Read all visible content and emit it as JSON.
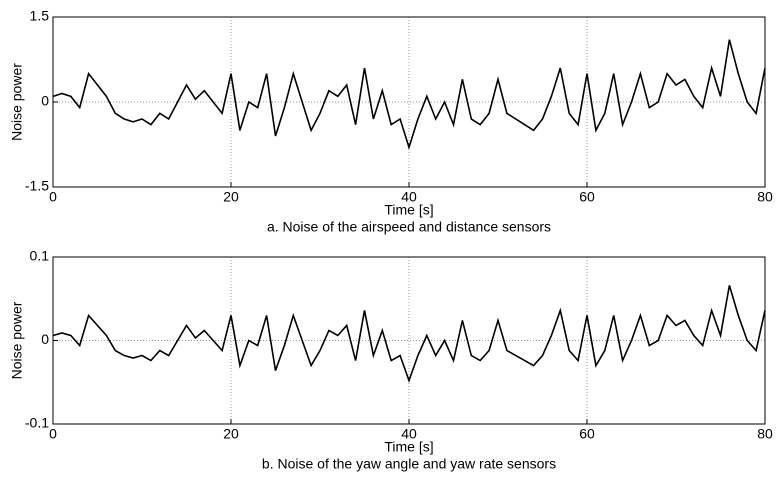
{
  "chart_data": [
    {
      "type": "line",
      "title": "a. Noise of the airspeed and distance sensors",
      "xlabel": "Time [s]",
      "ylabel": "Noise power",
      "xlim": [
        0,
        80
      ],
      "ylim": [
        -1.5,
        1.5
      ],
      "xticks": [
        0,
        20,
        40,
        60,
        80
      ],
      "yticks": [
        -1.5,
        0,
        1.5
      ],
      "grid": true,
      "series": [
        {
          "color": "#000000",
          "x": [
            0,
            1,
            2,
            3,
            4,
            5,
            6,
            7,
            8,
            9,
            10,
            11,
            12,
            13,
            14,
            15,
            16,
            17,
            18,
            19,
            20,
            21,
            22,
            23,
            24,
            25,
            26,
            27,
            28,
            29,
            30,
            31,
            32,
            33,
            34,
            35,
            36,
            37,
            38,
            39,
            40,
            41,
            42,
            43,
            44,
            45,
            46,
            47,
            48,
            49,
            50,
            51,
            52,
            53,
            54,
            55,
            56,
            57,
            58,
            59,
            60,
            61,
            62,
            63,
            64,
            65,
            66,
            67,
            68,
            69,
            70,
            71,
            72,
            73,
            74,
            75,
            76,
            77,
            78,
            79,
            80
          ],
          "values": [
            0.1,
            0.15,
            0.1,
            -0.1,
            0.5,
            0.3,
            0.1,
            -0.2,
            -0.3,
            -0.35,
            -0.3,
            -0.4,
            -0.2,
            -0.3,
            0.0,
            0.3,
            0.05,
            0.2,
            0.0,
            -0.2,
            0.5,
            -0.5,
            0.0,
            -0.1,
            0.5,
            -0.6,
            -0.1,
            0.5,
            0.0,
            -0.5,
            -0.2,
            0.2,
            0.1,
            0.3,
            -0.4,
            0.6,
            -0.3,
            0.2,
            -0.4,
            -0.3,
            -0.8,
            -0.3,
            0.1,
            -0.3,
            0.0,
            -0.4,
            0.4,
            -0.3,
            -0.4,
            -0.2,
            0.4,
            -0.2,
            -0.3,
            -0.4,
            -0.5,
            -0.3,
            0.1,
            0.6,
            -0.2,
            -0.4,
            0.5,
            -0.5,
            -0.2,
            0.5,
            -0.4,
            0.0,
            0.5,
            -0.1,
            0.0,
            0.5,
            0.3,
            0.4,
            0.1,
            -0.1,
            0.6,
            0.1,
            1.1,
            0.5,
            0.0,
            -0.2,
            0.6
          ]
        }
      ]
    },
    {
      "type": "line",
      "title": "b. Noise of the yaw angle and yaw rate sensors",
      "xlabel": "Time [s]",
      "ylabel": "Noise power",
      "xlim": [
        0,
        80
      ],
      "ylim": [
        -0.1,
        0.1
      ],
      "xticks": [
        0,
        20,
        40,
        60,
        80
      ],
      "yticks": [
        -0.1,
        0,
        0.1
      ],
      "grid": true,
      "series": [
        {
          "color": "#000000",
          "x": [
            0,
            1,
            2,
            3,
            4,
            5,
            6,
            7,
            8,
            9,
            10,
            11,
            12,
            13,
            14,
            15,
            16,
            17,
            18,
            19,
            20,
            21,
            22,
            23,
            24,
            25,
            26,
            27,
            28,
            29,
            30,
            31,
            32,
            33,
            34,
            35,
            36,
            37,
            38,
            39,
            40,
            41,
            42,
            43,
            44,
            45,
            46,
            47,
            48,
            49,
            50,
            51,
            52,
            53,
            54,
            55,
            56,
            57,
            58,
            59,
            60,
            61,
            62,
            63,
            64,
            65,
            66,
            67,
            68,
            69,
            70,
            71,
            72,
            73,
            74,
            75,
            76,
            77,
            78,
            79,
            80
          ],
          "values": [
            0.006,
            0.009,
            0.006,
            -0.006,
            0.03,
            0.018,
            0.006,
            -0.012,
            -0.018,
            -0.021,
            -0.018,
            -0.024,
            -0.012,
            -0.018,
            0,
            0.018,
            0.003,
            0.012,
            0,
            -0.012,
            0.03,
            -0.03,
            0,
            -0.006,
            0.03,
            -0.036,
            -0.006,
            0.03,
            0,
            -0.03,
            -0.012,
            0.012,
            0.006,
            0.018,
            -0.024,
            0.036,
            -0.018,
            0.012,
            -0.024,
            -0.018,
            -0.048,
            -0.018,
            0.006,
            -0.018,
            0,
            -0.024,
            0.024,
            -0.018,
            -0.024,
            -0.012,
            0.024,
            -0.012,
            -0.018,
            -0.024,
            -0.03,
            -0.018,
            0.006,
            0.036,
            -0.012,
            -0.024,
            0.03,
            -0.03,
            -0.012,
            0.03,
            -0.024,
            0,
            0.03,
            -0.006,
            0,
            0.03,
            0.018,
            0.024,
            0.006,
            -0.006,
            0.036,
            0.006,
            0.066,
            0.03,
            0,
            -0.012,
            0.036
          ]
        }
      ]
    }
  ]
}
